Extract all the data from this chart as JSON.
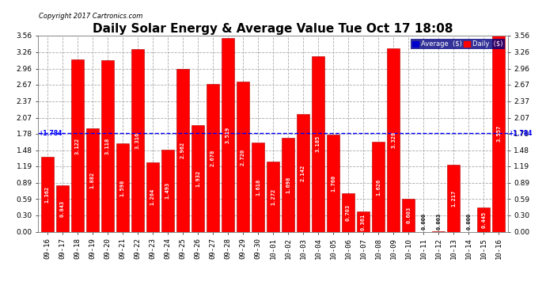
{
  "title": "Daily Solar Energy & Average Value Tue Oct 17 18:08",
  "copyright": "Copyright 2017 Cartronics.com",
  "average_line": 1.784,
  "average_label": "+1.784",
  "bar_color": "#FF0000",
  "average_line_color": "#0000FF",
  "background_color": "#FFFFFF",
  "plot_bg_color": "#FFFFFF",
  "categories": [
    "09-16",
    "09-17",
    "09-18",
    "09-19",
    "09-20",
    "09-21",
    "09-22",
    "09-23",
    "09-24",
    "09-25",
    "09-26",
    "09-27",
    "09-28",
    "09-29",
    "09-30",
    "10-01",
    "10-02",
    "10-03",
    "10-04",
    "10-05",
    "10-06",
    "10-07",
    "10-08",
    "10-09",
    "10-10",
    "10-11",
    "10-12",
    "10-13",
    "10-14",
    "10-15",
    "10-16"
  ],
  "values": [
    1.362,
    0.843,
    3.122,
    1.882,
    3.118,
    1.598,
    3.316,
    1.264,
    1.493,
    2.962,
    1.932,
    2.678,
    3.519,
    2.72,
    1.618,
    1.272,
    1.698,
    2.142,
    3.185,
    1.76,
    0.703,
    0.361,
    1.626,
    3.328,
    0.603,
    0.0,
    0.003,
    1.217,
    0.0,
    0.445,
    3.557
  ],
  "ylim": [
    0.0,
    3.56
  ],
  "yticks": [
    0.0,
    0.3,
    0.59,
    0.89,
    1.19,
    1.48,
    1.78,
    2.07,
    2.37,
    2.67,
    2.96,
    3.26,
    3.56
  ],
  "legend_avg_color": "#0000CC",
  "legend_daily_color": "#FF0000",
  "grid_color": "#AAAAAA",
  "bar_edge_color": "#AA0000",
  "value_label_color": "#000000",
  "value_fontsize": 5.0,
  "xlabel_fontsize": 6.5,
  "ylabel_fontsize": 6.5,
  "title_fontsize": 11
}
